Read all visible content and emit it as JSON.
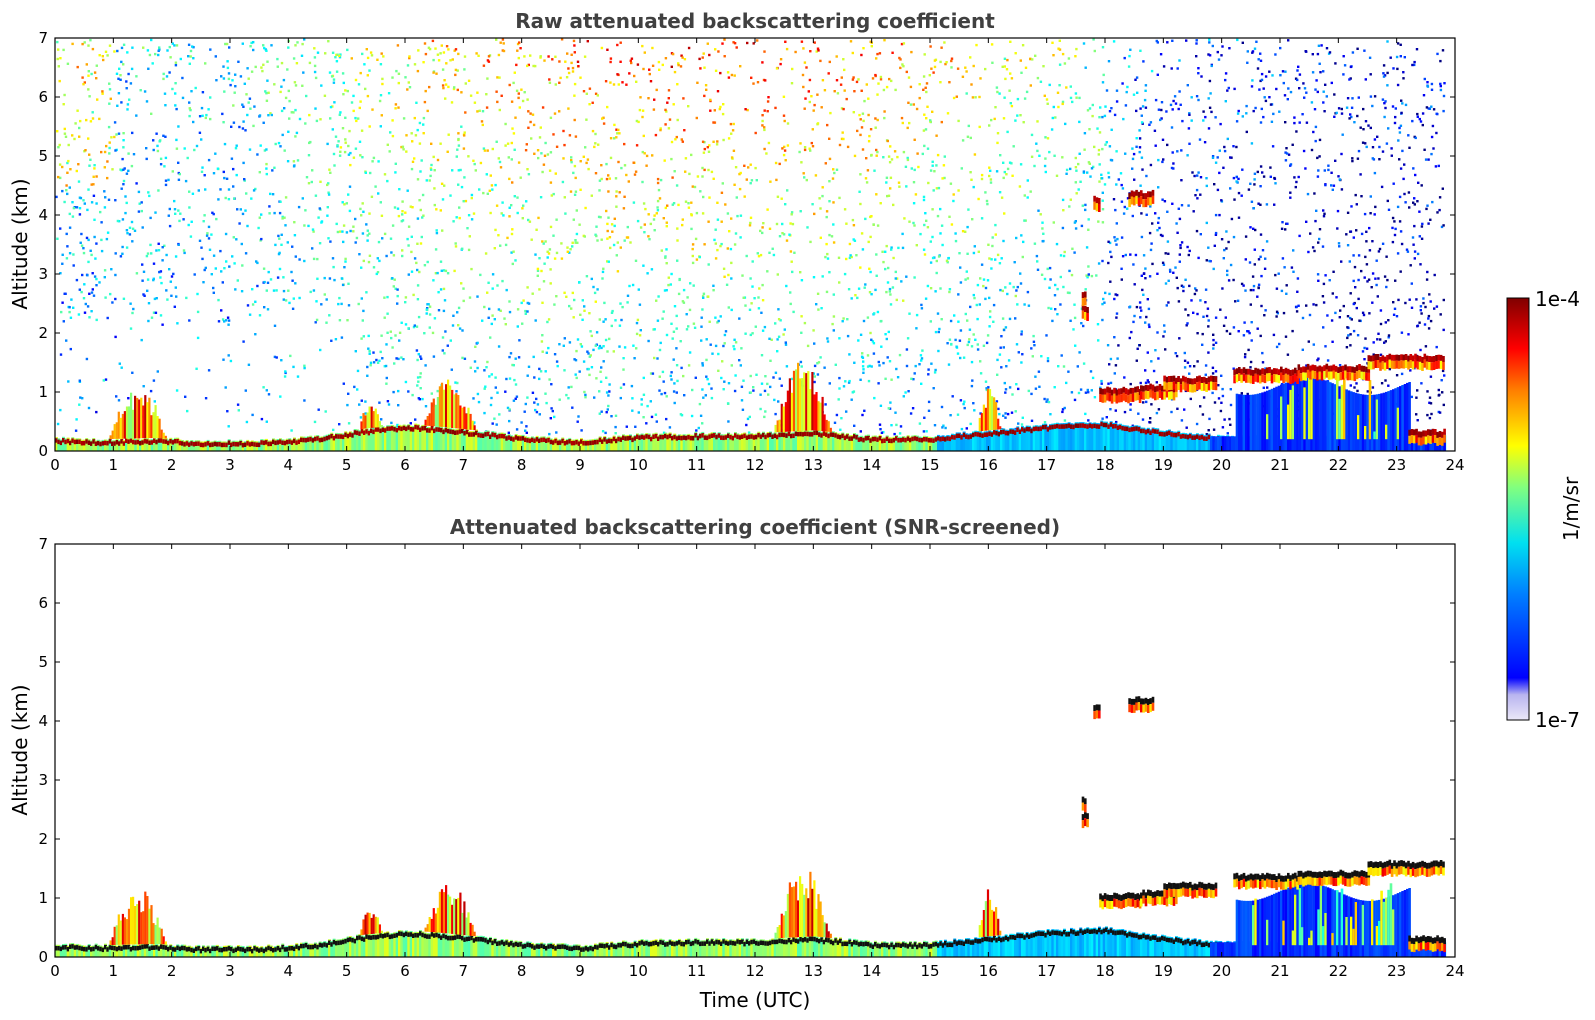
{
  "chart_data": [
    {
      "type": "heatmap",
      "title": "Raw attenuated backscattering coefficient",
      "xlabel": "",
      "ylabel": "Altitude (km)",
      "xlim": [
        0,
        24
      ],
      "ylim": [
        0,
        7
      ],
      "xticks": [
        "0",
        "1",
        "2",
        "3",
        "4",
        "5",
        "6",
        "7",
        "8",
        "9",
        "10",
        "11",
        "12",
        "13",
        "14",
        "15",
        "16",
        "17",
        "18",
        "19",
        "20",
        "21",
        "22",
        "23",
        "24"
      ],
      "yticks": [
        "0",
        "1",
        "2",
        "3",
        "4",
        "5",
        "6",
        "7"
      ],
      "screened": false,
      "boundary_layer_top_km": [
        [
          0,
          0.22
        ],
        [
          0.8,
          0.2
        ],
        [
          1.7,
          0.22
        ],
        [
          2.5,
          0.18
        ],
        [
          3.5,
          0.18
        ],
        [
          4.5,
          0.25
        ],
        [
          5.3,
          0.38
        ],
        [
          6.0,
          0.45
        ],
        [
          6.5,
          0.42
        ],
        [
          7.2,
          0.35
        ],
        [
          8.0,
          0.25
        ],
        [
          9.0,
          0.2
        ],
        [
          10.0,
          0.28
        ],
        [
          11.0,
          0.3
        ],
        [
          12.0,
          0.3
        ],
        [
          13.0,
          0.35
        ],
        [
          14.0,
          0.25
        ],
        [
          15.0,
          0.25
        ],
        [
          16.0,
          0.35
        ],
        [
          17.0,
          0.45
        ],
        [
          18.0,
          0.5
        ],
        [
          19.0,
          0.35
        ],
        [
          20.0,
          0.25
        ]
      ],
      "cloud_layers": [
        {
          "x0": 17.9,
          "x1": 18.6,
          "alt_km": 1.07
        },
        {
          "x0": 18.6,
          "x1": 19.2,
          "alt_km": 1.12
        },
        {
          "x0": 19.0,
          "x1": 19.9,
          "alt_km": 1.25
        },
        {
          "x0": 20.2,
          "x1": 21.3,
          "alt_km": 1.4
        },
        {
          "x0": 21.3,
          "x1": 22.5,
          "alt_km": 1.45
        },
        {
          "x0": 22.5,
          "x1": 23.8,
          "alt_km": 1.62
        },
        {
          "x0": 23.2,
          "x1": 23.8,
          "alt_km": 0.35
        },
        {
          "x0": 17.6,
          "x1": 17.7,
          "alt_km": 2.45
        },
        {
          "x0": 17.6,
          "x1": 17.65,
          "alt_km": 2.7
        },
        {
          "x0": 17.8,
          "x1": 17.9,
          "alt_km": 4.3
        },
        {
          "x0": 18.4,
          "x1": 18.8,
          "alt_km": 4.4
        }
      ],
      "plumes": [
        {
          "x0": 0.9,
          "x1": 1.9,
          "top_km": 1.2
        },
        {
          "x0": 5.2,
          "x1": 5.6,
          "top_km": 0.9
        },
        {
          "x0": 6.3,
          "x1": 7.2,
          "top_km": 1.3
        },
        {
          "x0": 12.3,
          "x1": 13.3,
          "top_km": 1.6
        },
        {
          "x0": 15.8,
          "x1": 16.2,
          "top_km": 1.2
        }
      ]
    },
    {
      "type": "heatmap",
      "title": "Attenuated backscattering coefficient (SNR-screened)",
      "xlabel": "Time (UTC)",
      "ylabel": "Altitude (km)",
      "xlim": [
        0,
        24
      ],
      "ylim": [
        0,
        7
      ],
      "xticks": [
        "0",
        "1",
        "2",
        "3",
        "4",
        "5",
        "6",
        "7",
        "8",
        "9",
        "10",
        "11",
        "12",
        "13",
        "14",
        "15",
        "16",
        "17",
        "18",
        "19",
        "20",
        "21",
        "22",
        "23",
        "24"
      ],
      "yticks": [
        "0",
        "1",
        "2",
        "3",
        "4",
        "5",
        "6",
        "7"
      ],
      "screened": true
    }
  ],
  "colorbar": {
    "max_label": "1e-4",
    "min_label": "1e-7",
    "unit_label": "1/m/sr",
    "colormap": "jet",
    "colors": [
      "#ebe8f8",
      "#c2bff0",
      "#0000ff",
      "#00a2ff",
      "#00e5e5",
      "#a6ff5a",
      "#ffff00",
      "#ff8c00",
      "#ff0000",
      "#800000"
    ]
  }
}
